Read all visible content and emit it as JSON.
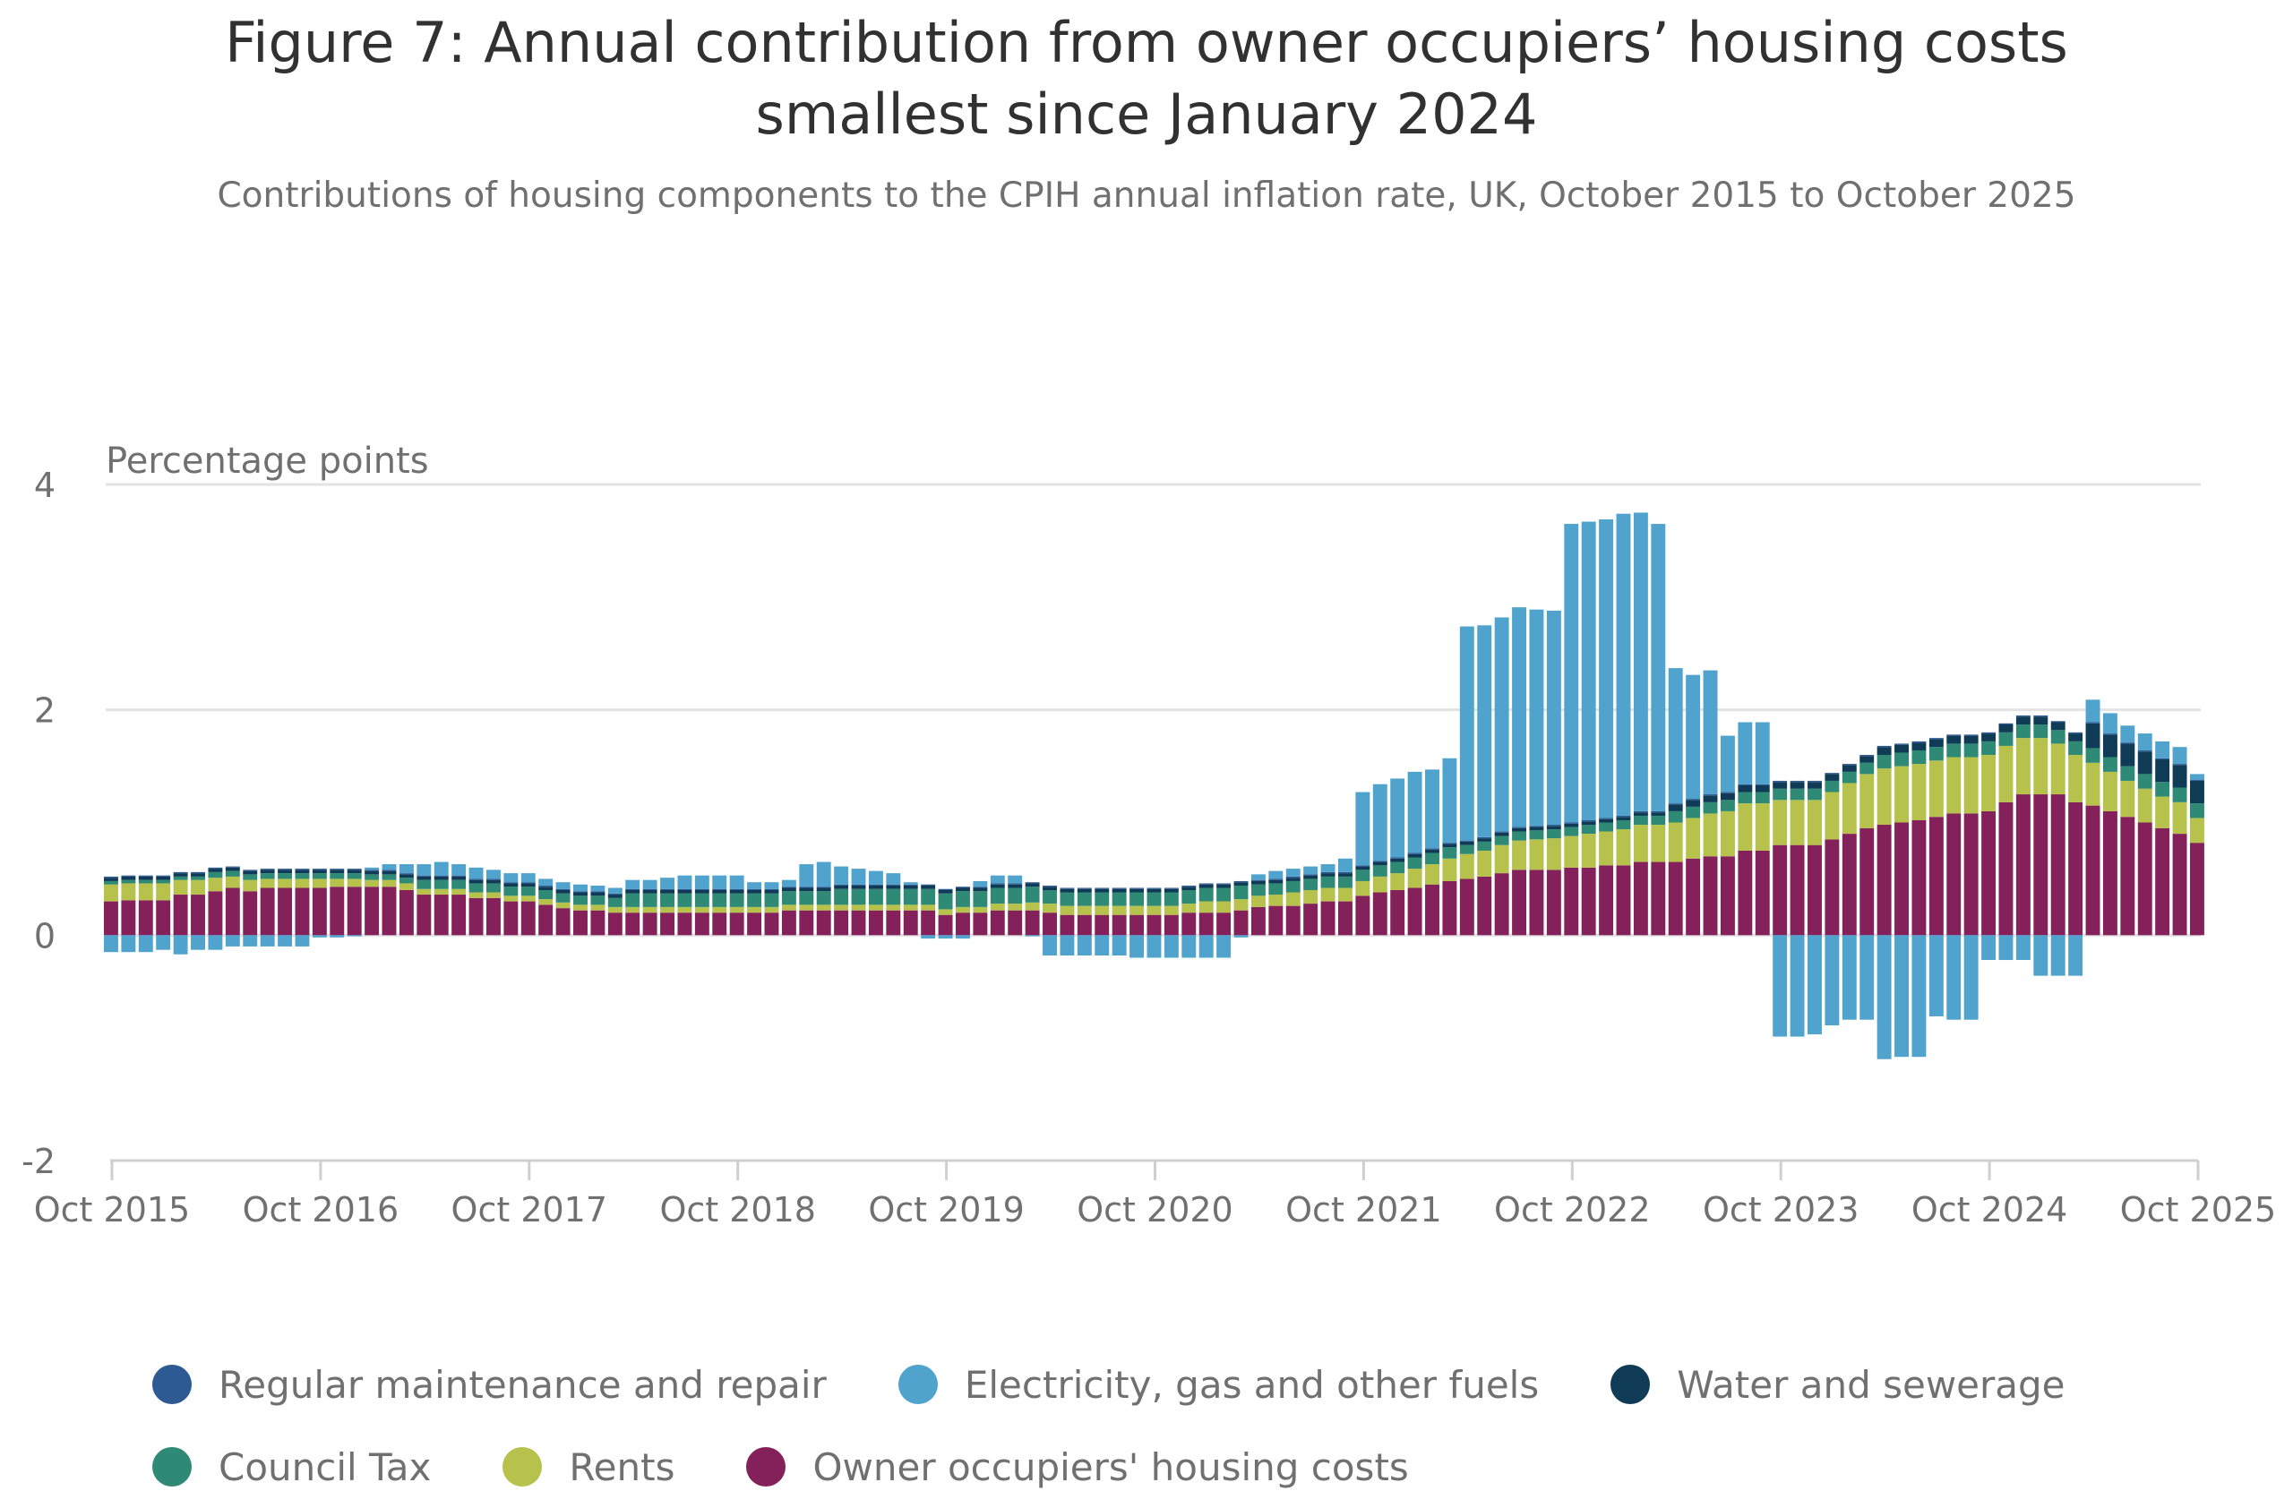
{
  "chart_data": {
    "type": "bar",
    "stacked": true,
    "title": "Figure 7: Annual contribution from owner occupiers’ housing costs smallest since January 2024",
    "title_lines": [
      "Figure 7: Annual contribution from owner occupiers’ housing costs",
      "smallest since January 2024"
    ],
    "subtitle": "Contributions of housing components to the CPIH annual inflation rate, UK, October 2015 to October 2025",
    "ylabel": "Percentage points",
    "xlabel": "",
    "ylim": [
      -2,
      4
    ],
    "yticks": [
      4,
      2,
      0,
      -2
    ],
    "x_start": "Oct 2015",
    "x_end": "Oct 2025",
    "x_frequency": "monthly",
    "xtick_labels": [
      "Oct 2015",
      "Oct 2016",
      "Oct 2017",
      "Oct 2018",
      "Oct 2019",
      "Oct 2020",
      "Oct 2021",
      "Oct 2022",
      "Oct 2023",
      "Oct 2024",
      "Oct 2025"
    ],
    "grid": true,
    "legend_placement": "bottom",
    "legend_order": [
      "maintenance",
      "electricity",
      "water",
      "council_tax",
      "rents",
      "ooh"
    ],
    "series": [
      {
        "key": "ooh",
        "name": "Owner occupiers' housing costs",
        "color": "#85215a",
        "values": [
          0.3,
          0.31,
          0.31,
          0.31,
          0.36,
          0.36,
          0.39,
          0.42,
          0.39,
          0.42,
          0.42,
          0.42,
          0.42,
          0.43,
          0.43,
          0.43,
          0.43,
          0.4,
          0.36,
          0.36,
          0.36,
          0.33,
          0.33,
          0.3,
          0.3,
          0.27,
          0.24,
          0.22,
          0.22,
          0.2,
          0.2,
          0.2,
          0.2,
          0.2,
          0.2,
          0.2,
          0.2,
          0.2,
          0.2,
          0.22,
          0.22,
          0.22,
          0.22,
          0.22,
          0.22,
          0.22,
          0.22,
          0.22,
          0.18,
          0.2,
          0.2,
          0.22,
          0.22,
          0.22,
          0.2,
          0.18,
          0.18,
          0.18,
          0.18,
          0.18,
          0.18,
          0.18,
          0.2,
          0.2,
          0.2,
          0.22,
          0.25,
          0.26,
          0.26,
          0.28,
          0.3,
          0.3,
          0.35,
          0.38,
          0.4,
          0.42,
          0.45,
          0.48,
          0.5,
          0.52,
          0.55,
          0.58,
          0.58,
          0.58,
          0.6,
          0.6,
          0.62,
          0.62,
          0.65,
          0.65,
          0.65,
          0.68,
          0.7,
          0.7,
          0.75,
          0.75,
          0.8,
          0.8,
          0.8,
          0.85,
          0.9,
          0.95,
          0.98,
          1.0,
          1.02,
          1.05,
          1.08,
          1.08,
          1.1,
          1.18,
          1.25,
          1.25,
          1.25,
          1.18,
          1.15,
          1.1,
          1.05,
          1.0,
          0.95,
          0.9,
          0.82
        ]
      },
      {
        "key": "rents",
        "name": "Rents",
        "color": "#b6c24b",
        "values": [
          0.15,
          0.15,
          0.15,
          0.15,
          0.13,
          0.13,
          0.12,
          0.1,
          0.1,
          0.08,
          0.08,
          0.08,
          0.08,
          0.07,
          0.07,
          0.06,
          0.06,
          0.06,
          0.05,
          0.05,
          0.05,
          0.05,
          0.05,
          0.05,
          0.05,
          0.05,
          0.05,
          0.05,
          0.05,
          0.05,
          0.05,
          0.05,
          0.05,
          0.05,
          0.05,
          0.05,
          0.05,
          0.05,
          0.05,
          0.05,
          0.05,
          0.05,
          0.05,
          0.05,
          0.05,
          0.05,
          0.05,
          0.05,
          0.05,
          0.05,
          0.05,
          0.06,
          0.06,
          0.07,
          0.08,
          0.08,
          0.08,
          0.08,
          0.08,
          0.08,
          0.08,
          0.08,
          0.08,
          0.1,
          0.1,
          0.1,
          0.1,
          0.1,
          0.12,
          0.12,
          0.12,
          0.12,
          0.13,
          0.14,
          0.15,
          0.17,
          0.18,
          0.2,
          0.22,
          0.23,
          0.25,
          0.26,
          0.27,
          0.28,
          0.28,
          0.3,
          0.3,
          0.32,
          0.33,
          0.33,
          0.35,
          0.36,
          0.38,
          0.4,
          0.42,
          0.42,
          0.4,
          0.4,
          0.4,
          0.42,
          0.45,
          0.48,
          0.5,
          0.5,
          0.5,
          0.5,
          0.5,
          0.5,
          0.5,
          0.5,
          0.5,
          0.5,
          0.45,
          0.42,
          0.38,
          0.35,
          0.32,
          0.3,
          0.28,
          0.28,
          0.22
        ]
      },
      {
        "key": "council_tax",
        "name": "Council Tax",
        "color": "#2e8a74",
        "values": [
          0.03,
          0.03,
          0.03,
          0.03,
          0.03,
          0.03,
          0.05,
          0.05,
          0.05,
          0.05,
          0.05,
          0.05,
          0.05,
          0.05,
          0.05,
          0.05,
          0.05,
          0.05,
          0.08,
          0.08,
          0.08,
          0.08,
          0.08,
          0.08,
          0.08,
          0.08,
          0.08,
          0.08,
          0.08,
          0.08,
          0.12,
          0.12,
          0.12,
          0.12,
          0.12,
          0.12,
          0.12,
          0.12,
          0.12,
          0.12,
          0.12,
          0.12,
          0.14,
          0.14,
          0.14,
          0.14,
          0.14,
          0.14,
          0.14,
          0.14,
          0.14,
          0.14,
          0.14,
          0.14,
          0.12,
          0.12,
          0.12,
          0.12,
          0.12,
          0.12,
          0.12,
          0.12,
          0.12,
          0.12,
          0.12,
          0.12,
          0.1,
          0.1,
          0.1,
          0.1,
          0.1,
          0.1,
          0.1,
          0.1,
          0.1,
          0.1,
          0.1,
          0.1,
          0.08,
          0.08,
          0.08,
          0.08,
          0.08,
          0.08,
          0.08,
          0.08,
          0.08,
          0.08,
          0.08,
          0.08,
          0.1,
          0.1,
          0.1,
          0.1,
          0.1,
          0.1,
          0.1,
          0.1,
          0.1,
          0.1,
          0.1,
          0.1,
          0.12,
          0.12,
          0.12,
          0.12,
          0.12,
          0.12,
          0.12,
          0.12,
          0.12,
          0.12,
          0.12,
          0.12,
          0.13,
          0.13,
          0.13,
          0.13,
          0.13,
          0.13,
          0.13
        ]
      },
      {
        "key": "water",
        "name": "Water and sewerage",
        "color": "#0f3b56",
        "values": [
          0.03,
          0.03,
          0.03,
          0.03,
          0.03,
          0.03,
          0.03,
          0.03,
          0.03,
          0.03,
          0.03,
          0.03,
          0.03,
          0.03,
          0.03,
          0.03,
          0.03,
          0.03,
          0.03,
          0.03,
          0.03,
          0.03,
          0.03,
          0.03,
          0.03,
          0.03,
          0.03,
          0.03,
          0.03,
          0.03,
          0.03,
          0.03,
          0.03,
          0.03,
          0.03,
          0.03,
          0.03,
          0.03,
          0.03,
          0.03,
          0.03,
          0.03,
          0.03,
          0.03,
          0.03,
          0.03,
          0.03,
          0.03,
          0.03,
          0.03,
          0.03,
          0.03,
          0.03,
          0.03,
          0.03,
          0.03,
          0.03,
          0.03,
          0.03,
          0.03,
          0.03,
          0.03,
          0.03,
          0.03,
          0.03,
          0.03,
          0.03,
          0.03,
          0.03,
          0.03,
          0.03,
          0.03,
          0.03,
          0.03,
          0.03,
          0.03,
          0.03,
          0.03,
          0.03,
          0.03,
          0.03,
          0.03,
          0.03,
          0.03,
          0.03,
          0.03,
          0.03,
          0.03,
          0.03,
          0.03,
          0.06,
          0.06,
          0.06,
          0.06,
          0.06,
          0.06,
          0.06,
          0.06,
          0.06,
          0.06,
          0.06,
          0.06,
          0.07,
          0.07,
          0.07,
          0.07,
          0.07,
          0.07,
          0.07,
          0.07,
          0.07,
          0.07,
          0.07,
          0.07,
          0.22,
          0.2,
          0.2,
          0.2,
          0.2,
          0.2,
          0.2
        ]
      },
      {
        "key": "maintenance",
        "name": "Regular maintenance and repair",
        "color": "#2e5a93",
        "values": [
          0.01,
          0.01,
          0.01,
          0.01,
          0.01,
          0.01,
          0.01,
          0.01,
          0.01,
          0.01,
          0.01,
          0.01,
          0.01,
          0.01,
          0.01,
          0.01,
          0.01,
          0.01,
          0.01,
          0.01,
          0.01,
          0.01,
          0.01,
          0.01,
          0.01,
          0.01,
          0.01,
          0.01,
          0.01,
          0.01,
          0.01,
          0.01,
          0.01,
          0.01,
          0.01,
          0.01,
          0.01,
          0.01,
          0.01,
          0.01,
          0.01,
          0.01,
          0.01,
          0.01,
          0.01,
          0.01,
          0.01,
          0.01,
          0.01,
          0.01,
          0.01,
          0.01,
          0.01,
          0.01,
          0.01,
          0.01,
          0.01,
          0.01,
          0.01,
          0.01,
          0.01,
          0.01,
          0.01,
          0.01,
          0.01,
          0.01,
          0.01,
          0.01,
          0.01,
          0.01,
          0.01,
          0.01,
          0.01,
          0.01,
          0.01,
          0.01,
          0.01,
          0.01,
          0.01,
          0.01,
          0.01,
          0.01,
          0.01,
          0.01,
          0.01,
          0.01,
          0.01,
          0.01,
          0.01,
          0.01,
          0.01,
          0.01,
          0.01,
          0.01,
          0.01,
          0.01,
          0.01,
          0.01,
          0.01,
          0.01,
          0.01,
          0.01,
          0.01,
          0.01,
          0.01,
          0.01,
          0.01,
          0.01,
          0.01,
          0.01,
          0.01,
          0.01,
          0.01,
          0.01,
          0.01,
          0.01,
          0.01,
          0.01,
          0.01,
          0.01,
          0.01
        ]
      },
      {
        "key": "electricity",
        "name": "Electricity, gas and other fuels",
        "color": "#4fa3cd",
        "values": [
          -0.15,
          -0.15,
          -0.15,
          -0.13,
          -0.17,
          -0.13,
          -0.13,
          -0.1,
          -0.1,
          -0.1,
          -0.1,
          -0.1,
          -0.02,
          -0.02,
          -0.01,
          0.02,
          0.05,
          0.08,
          0.1,
          0.12,
          0.1,
          0.1,
          0.08,
          0.08,
          0.08,
          0.06,
          0.06,
          0.06,
          0.05,
          0.05,
          0.08,
          0.08,
          0.1,
          0.12,
          0.12,
          0.12,
          0.12,
          0.06,
          0.06,
          0.06,
          0.2,
          0.22,
          0.16,
          0.14,
          0.12,
          0.1,
          0.02,
          -0.03,
          -0.03,
          -0.03,
          0.05,
          0.07,
          0.07,
          -0.01,
          -0.18,
          -0.18,
          -0.18,
          -0.18,
          -0.18,
          -0.2,
          -0.2,
          -0.2,
          -0.2,
          -0.2,
          -0.2,
          -0.02,
          0.05,
          0.07,
          0.07,
          0.07,
          0.07,
          0.12,
          0.65,
          0.68,
          0.7,
          0.72,
          0.7,
          0.75,
          1.9,
          1.88,
          1.9,
          1.95,
          1.92,
          1.9,
          2.65,
          2.65,
          2.65,
          2.68,
          2.65,
          2.55,
          1.2,
          1.1,
          1.1,
          0.5,
          0.55,
          0.55,
          -0.9,
          -0.9,
          -0.88,
          -0.8,
          -0.75,
          -0.75,
          -1.1,
          -1.08,
          -1.08,
          -0.72,
          -0.75,
          -0.75,
          -0.22,
          -0.22,
          -0.22,
          -0.36,
          -0.36,
          -0.36,
          0.2,
          0.18,
          0.15,
          0.15,
          0.15,
          0.15,
          0.05
        ]
      }
    ]
  }
}
